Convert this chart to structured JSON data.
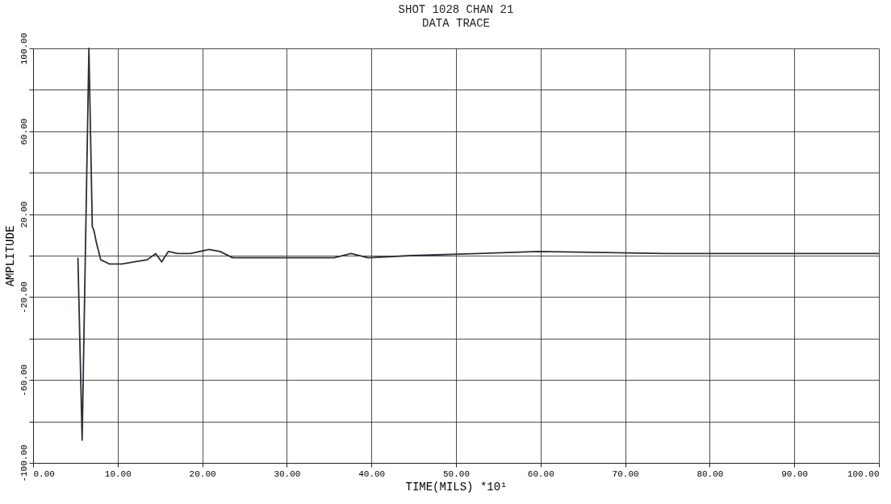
{
  "chart_data": {
    "type": "line",
    "title": "SHOT      1028  CHAN        21",
    "subtitle": "DATA  TRACE",
    "xlabel": "TIME(MILS)  *10¹",
    "ylabel": "AMPLITUDE",
    "x": [
      5.3,
      5.8,
      6.6,
      7.0,
      7.2,
      7.5,
      8.0,
      9.0,
      10.5,
      12.0,
      13.5,
      14.5,
      15.2,
      16.0,
      17.1,
      18.6,
      20.8,
      22.1,
      23.6,
      26.6,
      29.1,
      33.6,
      35.6,
      37.6,
      39.6,
      44.6,
      52.7,
      59.7,
      74.7,
      94.8,
      100
    ],
    "series": [
      {
        "color": "#2a3038",
        "values": [
          -1,
          -89,
          100,
          14,
          12,
          6,
          -2,
          -4,
          -4,
          -3,
          -2,
          1,
          -3,
          2,
          1,
          1,
          3,
          2,
          -1,
          -1,
          -1,
          -1,
          -1,
          1,
          -1,
          0,
          1,
          2,
          1,
          1,
          1
        ]
      }
    ],
    "xlim": [
      0,
      100
    ],
    "xticks": [
      {
        "value": 0,
        "label": "0.00"
      },
      {
        "value": 10,
        "label": "10.00"
      },
      {
        "value": 20,
        "label": "20.00"
      },
      {
        "value": 30,
        "label": "30.00"
      },
      {
        "value": 40,
        "label": "40.00"
      },
      {
        "value": 50,
        "label": "50.00"
      },
      {
        "value": 60,
        "label": "60.00"
      },
      {
        "value": 70,
        "label": "70.00"
      },
      {
        "value": 80,
        "label": "80.00"
      },
      {
        "value": 90,
        "label": "90.00"
      },
      {
        "value": 100,
        "label": "100.00"
      }
    ],
    "ylim": [
      -100,
      100
    ],
    "yticks": [
      {
        "value": -100,
        "label": "-100.00"
      },
      {
        "value": -80,
        "label": null
      },
      {
        "value": -60,
        "label": "-60.00"
      },
      {
        "value": -40,
        "label": null
      },
      {
        "value": -20,
        "label": "-20.00"
      },
      {
        "value": 0,
        "label": null
      },
      {
        "value": 20,
        "label": "20.00"
      },
      {
        "value": 40,
        "label": null
      },
      {
        "value": 60,
        "label": "60.00"
      },
      {
        "value": 80,
        "label": null
      },
      {
        "value": 100,
        "label": "100.00"
      }
    ],
    "grid": true,
    "line_style": "solid",
    "marker": "none"
  }
}
